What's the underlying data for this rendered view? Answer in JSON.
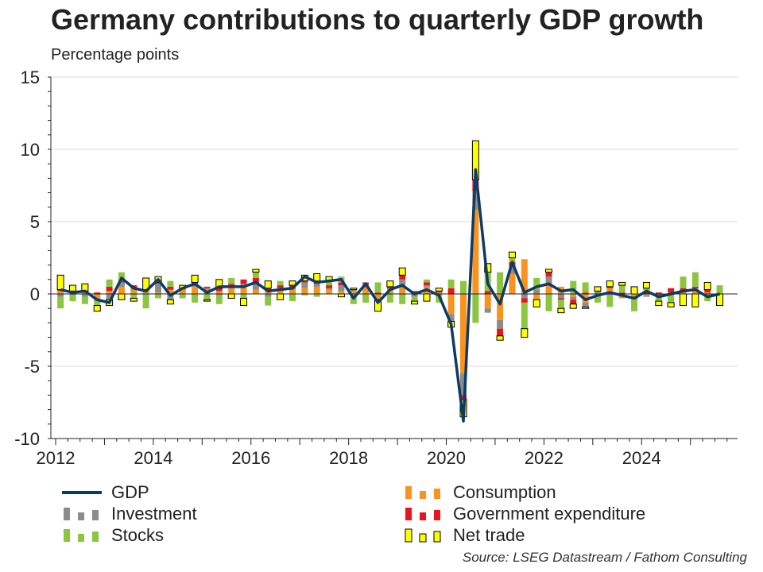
{
  "title": "Germany contributions to quarterly GDP growth",
  "subtitle": "Percentage points",
  "source": "Source: LSEG Datastream / Fathom Consulting",
  "legend": {
    "gdp": "GDP",
    "consumption": "Consumption",
    "investment": "Investment",
    "government": "Government expenditure",
    "stocks": "Stocks",
    "net_trade": "Net trade"
  },
  "colors": {
    "gdp": "#0d3b66",
    "consumption": "#f7931e",
    "investment": "#8c8c8c",
    "government": "#e8141e",
    "stocks": "#8cc63f",
    "net_trade": "#ffff00"
  },
  "chart_data": {
    "type": "bar",
    "stacked": true,
    "title": "Germany contributions to quarterly GDP growth",
    "ylabel": "Percentage points",
    "ylim": [
      -10,
      15
    ],
    "yticks": [
      -10,
      -5,
      0,
      5,
      10,
      15
    ],
    "xlim": [
      2012,
      2025.9
    ],
    "xticks": [
      2012,
      2014,
      2016,
      2018,
      2020,
      2022,
      2024
    ],
    "grid": true,
    "legend_position": "bottom",
    "x": [
      2012.1,
      2012.35,
      2012.6,
      2012.85,
      2013.1,
      2013.35,
      2013.6,
      2013.85,
      2014.1,
      2014.35,
      2014.6,
      2014.85,
      2015.1,
      2015.35,
      2015.6,
      2015.85,
      2016.1,
      2016.35,
      2016.6,
      2016.85,
      2017.1,
      2017.35,
      2017.6,
      2017.85,
      2018.1,
      2018.35,
      2018.6,
      2018.85,
      2019.1,
      2019.35,
      2019.6,
      2019.85,
      2020.1,
      2020.35,
      2020.6,
      2020.85,
      2021.1,
      2021.35,
      2021.6,
      2021.85,
      2022.1,
      2022.35,
      2022.6,
      2022.85,
      2023.1,
      2023.35,
      2023.6,
      2023.85,
      2024.1,
      2024.35,
      2024.6,
      2024.85,
      2025.1,
      2025.35,
      2025.6
    ],
    "gdp": [
      0.3,
      0.1,
      0.2,
      -0.4,
      -0.6,
      1.1,
      0.4,
      0.2,
      1.0,
      -0.1,
      0.4,
      0.7,
      0.1,
      0.5,
      0.5,
      0.5,
      0.8,
      0.2,
      0.3,
      0.4,
      1.2,
      0.8,
      0.9,
      1.0,
      -0.3,
      0.7,
      -0.6,
      0.3,
      0.6,
      0.0,
      0.3,
      -0.1,
      -2.1,
      -8.8,
      8.6,
      0.7,
      -0.7,
      2.2,
      0.1,
      0.5,
      0.7,
      0.2,
      0.3,
      -0.4,
      -0.1,
      0.1,
      -0.1,
      -0.3,
      0.2,
      -0.2,
      0.0,
      0.2,
      0.3,
      -0.2,
      0.0
    ],
    "series": [
      {
        "name": "Consumption",
        "values": [
          0.2,
          0.1,
          0.1,
          -0.3,
          0.2,
          0.5,
          0.3,
          0.1,
          0.1,
          0.3,
          0.3,
          0.5,
          0.3,
          0.2,
          0.4,
          0.5,
          0.3,
          0.2,
          0.3,
          0.3,
          0.4,
          0.5,
          0.3,
          0.2,
          0.2,
          0.4,
          -0.3,
          0.3,
          0.6,
          0.0,
          0.5,
          0.1,
          -1.4,
          -5.5,
          5.8,
          -1.0,
          -1.8,
          1.4,
          2.4,
          -0.4,
          0.6,
          0.5,
          -0.2,
          -0.6,
          0.0,
          0.4,
          -0.3,
          -0.2,
          -0.1,
          0.0,
          0.1,
          0.1,
          0.3,
          0.1,
          0.0
        ]
      },
      {
        "name": "Investment",
        "values": [
          -0.2,
          -0.1,
          -0.2,
          -0.2,
          -0.4,
          0.3,
          0.1,
          0.1,
          0.6,
          -0.4,
          0.0,
          0.2,
          0.1,
          -0.1,
          0.1,
          0.2,
          0.4,
          -0.2,
          0.1,
          0.1,
          0.4,
          0.2,
          0.1,
          0.4,
          0.1,
          0.3,
          -0.1,
          0.1,
          0.4,
          -0.2,
          0.1,
          -0.1,
          -0.5,
          -1.5,
          1.3,
          -0.3,
          -0.6,
          0.5,
          -0.3,
          0.3,
          0.6,
          -0.3,
          -0.2,
          -0.3,
          0.2,
          -0.1,
          0.0,
          -0.2,
          -0.1,
          -0.2,
          0.0,
          0.0,
          0.1,
          0.0,
          0.0
        ]
      },
      {
        "name": "Government expenditure",
        "values": [
          0.1,
          0.1,
          0.1,
          0.1,
          0.3,
          0.1,
          0.2,
          0.1,
          0.1,
          0.2,
          0.1,
          0.1,
          0.1,
          0.2,
          0.2,
          0.3,
          0.4,
          0.2,
          0.2,
          0.2,
          0.1,
          0.2,
          0.2,
          0.2,
          0.0,
          0.1,
          0.1,
          0.1,
          0.3,
          0.2,
          0.2,
          0.1,
          0.4,
          -0.3,
          0.8,
          0.2,
          -0.5,
          0.3,
          -0.3,
          0.0,
          0.3,
          -0.1,
          -0.3,
          0.1,
          0.0,
          0.1,
          0.1,
          0.0,
          0.1,
          0.1,
          0.3,
          0.3,
          0.1,
          0.2,
          0.0
        ]
      },
      {
        "name": "Stocks",
        "values": [
          -0.8,
          -0.4,
          -0.5,
          -0.3,
          0.5,
          0.6,
          -0.3,
          -1.0,
          -0.3,
          0.4,
          -0.3,
          -0.6,
          -0.4,
          -0.6,
          0.4,
          -0.3,
          0.4,
          -0.6,
          0.3,
          -0.5,
          -0.1,
          -0.2,
          0.3,
          0.4,
          -0.7,
          -0.6,
          0.7,
          -0.6,
          -0.7,
          -0.3,
          0.2,
          -0.5,
          0.6,
          0.9,
          -2.0,
          1.3,
          1.5,
          0.3,
          -1.8,
          0.8,
          -1.2,
          -0.6,
          0.9,
          0.7,
          -0.6,
          -0.8,
          0.5,
          -0.8,
          0.3,
          -0.3,
          -0.6,
          0.8,
          1.0,
          -0.5,
          0.6
        ]
      },
      {
        "name": "Net trade",
        "values": [
          1.0,
          0.4,
          0.5,
          -0.4,
          -0.4,
          -0.4,
          -0.2,
          0.8,
          0.4,
          -0.3,
          0.2,
          0.5,
          -0.1,
          0.6,
          -0.3,
          -0.5,
          0.2,
          0.5,
          -0.4,
          0.3,
          0.4,
          0.5,
          0.3,
          -0.2,
          0.1,
          0.0,
          -0.8,
          0.4,
          0.5,
          -0.2,
          -0.5,
          0.2,
          -0.4,
          -1.2,
          2.7,
          0.6,
          -0.3,
          0.4,
          -0.6,
          -0.5,
          0.2,
          -0.3,
          -0.3,
          -0.1,
          0.3,
          0.4,
          0.2,
          0.5,
          0.4,
          -0.3,
          -0.3,
          -0.8,
          -0.9,
          0.5,
          -0.8
        ]
      }
    ]
  }
}
